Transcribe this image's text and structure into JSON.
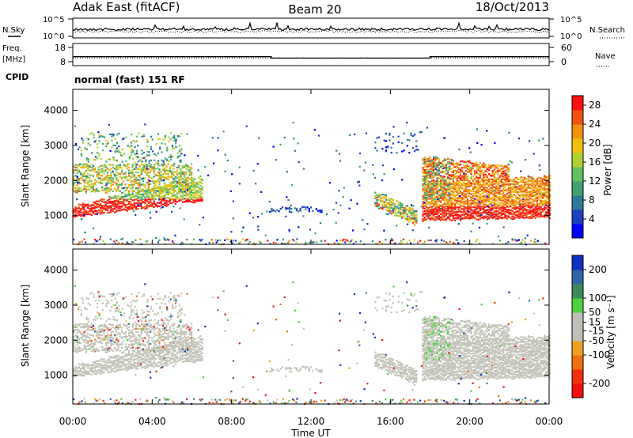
{
  "header": {
    "station": "Adak East (fitACF)",
    "beam": "Beam 20",
    "date": "18/Oct/2013"
  },
  "labels": {
    "nsky": "N.Sky",
    "nsearch": "N.Search",
    "freq_line1": "Freq.",
    "freq_line2": "[MHz]",
    "nave": "Nave",
    "cpid": "CPID",
    "cpid_text": "normal (fast) 151 RF"
  },
  "colors": {
    "power_scale": [
      "#0000ff",
      "#1f3fc0",
      "#2f7a9a",
      "#3fa070",
      "#62c060",
      "#b0d030",
      "#f0c010",
      "#f09010",
      "#f05010",
      "#ff1010"
    ],
    "velocity_scale": [
      "#1030c0",
      "#2e66a8",
      "#3c8a5a",
      "#50d040",
      "#c0c0b8",
      "#c0c0b8",
      "#f0a020",
      "#f07010",
      "#f03010",
      "#f01010"
    ],
    "velocity_ground": "#c3c3b9"
  },
  "chart_data": [
    {
      "type": "line",
      "panel": "noise",
      "left_axis": {
        "label": "N.Sky",
        "ticks": [
          "10^5",
          "10^0"
        ]
      },
      "right_axis": {
        "label": "N.Search",
        "ticks": [
          "10^5",
          "10^0"
        ]
      },
      "x": {
        "range": [
          "00:00",
          "24:00"
        ]
      }
    },
    {
      "type": "line",
      "panel": "frequency",
      "left_axis": {
        "label": "Freq. [MHz]",
        "ticks": [
          18,
          8
        ]
      },
      "right_axis": {
        "label": "Nave",
        "ticks": [
          60,
          0
        ]
      },
      "frequency_steps": [
        {
          "start_hour": 0,
          "end_hour": 10,
          "value_mhz": 11.5
        },
        {
          "start_hour": 10,
          "end_hour": 18,
          "value_mhz": 10.5
        },
        {
          "start_hour": 18,
          "end_hour": 24,
          "value_mhz": 11.5
        }
      ],
      "nave_level": 16
    },
    {
      "type": "heatmap",
      "panel": "power",
      "ylabel": "Slant Range [km]",
      "yticks": [
        1000,
        2000,
        3000,
        4000
      ],
      "ylim": [
        180,
        4600
      ],
      "x_range_hours": [
        0,
        24
      ],
      "colorbar": {
        "label": "Power [dB]",
        "ticks": [
          4,
          8,
          12,
          16,
          20,
          24,
          28
        ],
        "range": [
          0,
          30
        ]
      }
    },
    {
      "type": "heatmap",
      "panel": "velocity",
      "ylabel": "Slant Range [km]",
      "yticks": [
        1000,
        2000,
        3000,
        4000
      ],
      "ylim": [
        180,
        4600
      ],
      "x_range_hours": [
        0,
        24
      ],
      "colorbar": {
        "label": "Velocity [m s⁻¹]",
        "ticks": [
          200,
          100,
          50,
          15,
          -15,
          -50,
          -100,
          -200
        ],
        "range": [
          -250,
          250
        ]
      }
    }
  ],
  "xaxis": {
    "ticks": [
      "00:00",
      "04:00",
      "08:00",
      "12:00",
      "16:00",
      "20:00",
      "00:00"
    ],
    "label": "Time UT"
  }
}
